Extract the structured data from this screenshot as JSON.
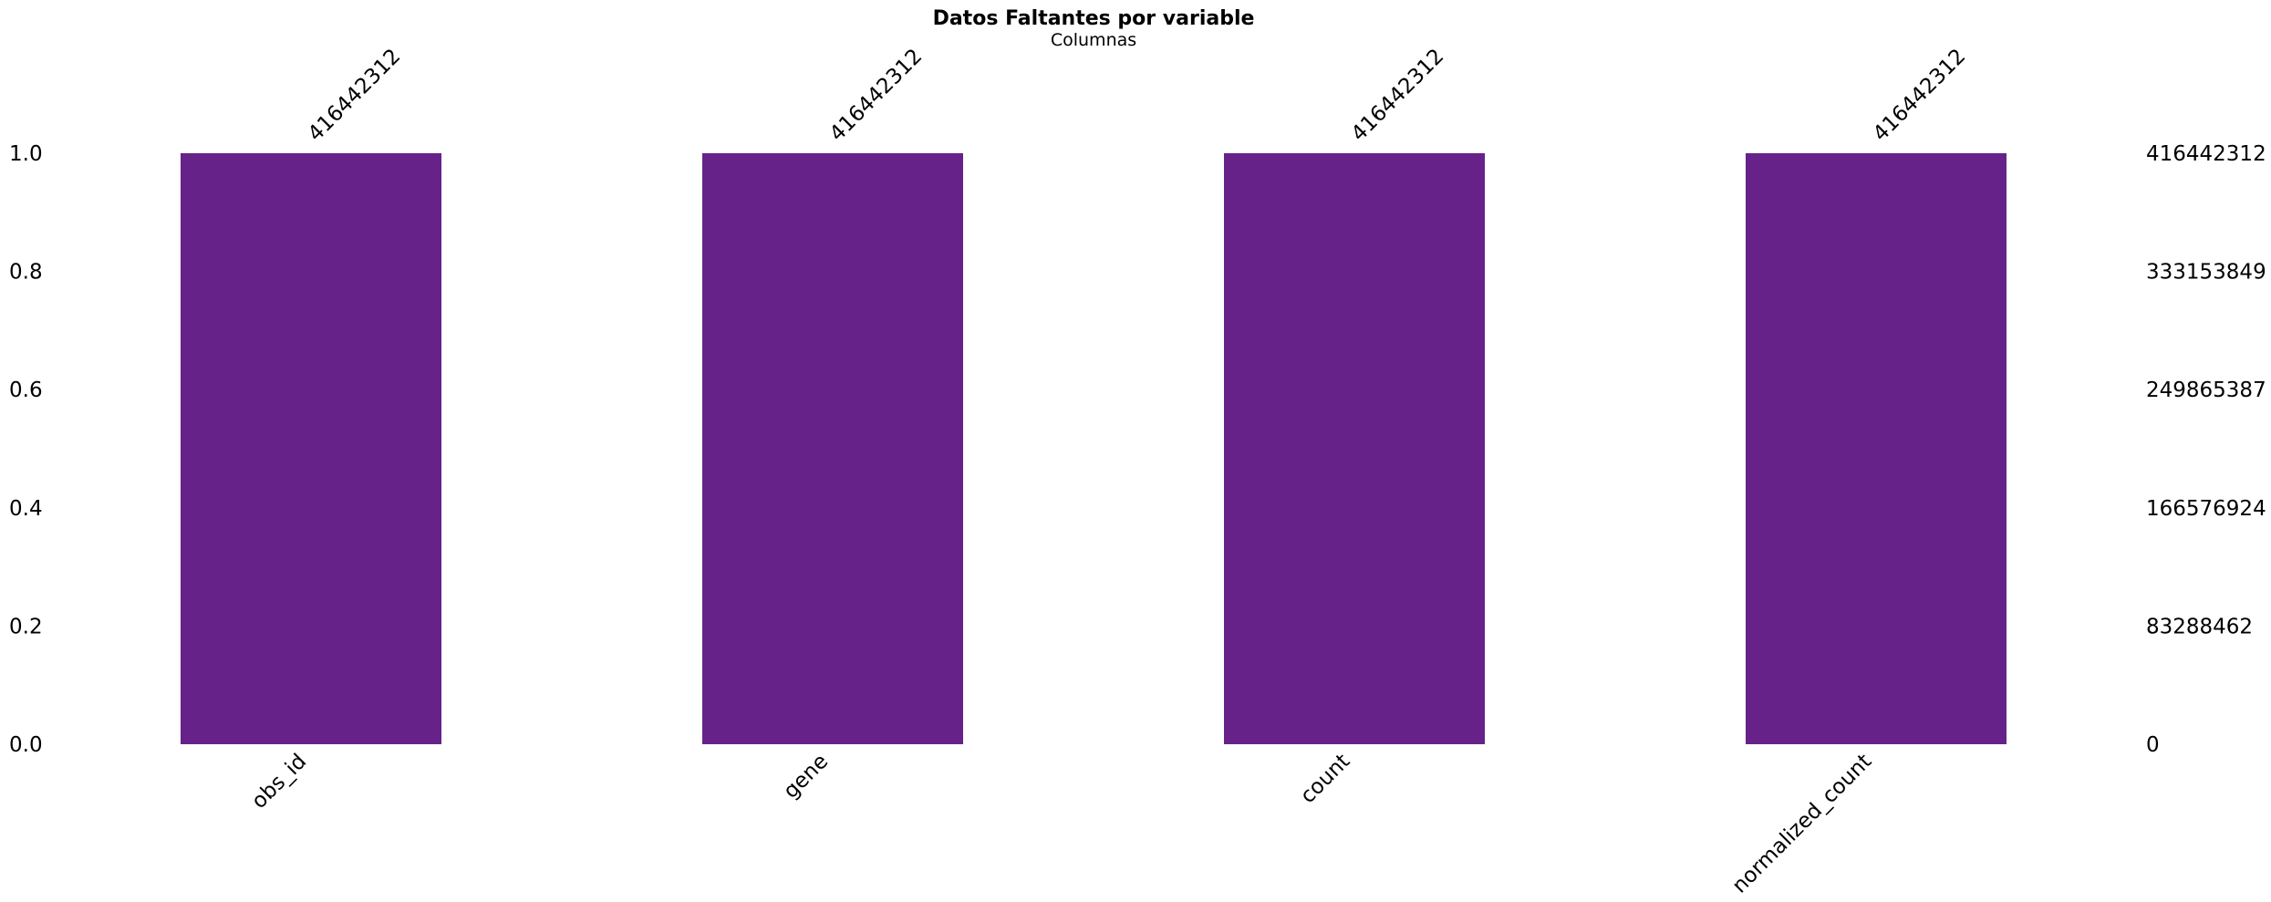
{
  "chart_data": {
    "type": "bar",
    "title": "Datos Faltantes por variable",
    "subtitle": "Columnas",
    "categories": [
      "obs_id",
      "gene",
      "count",
      "normalized_count"
    ],
    "values": [
      1.0,
      1.0,
      1.0,
      1.0
    ],
    "counts": [
      "416442312",
      "416442312",
      "416442312",
      "416442312"
    ],
    "ylim": [
      0,
      1.0
    ],
    "left_ticks": [
      "0.0",
      "0.2",
      "0.4",
      "0.6",
      "0.8",
      "1.0"
    ],
    "right_ticks": [
      "0",
      "83288462",
      "166576924",
      "249865387",
      "333153849",
      "416442312"
    ],
    "bar_color": "#662289",
    "grid": false
  }
}
